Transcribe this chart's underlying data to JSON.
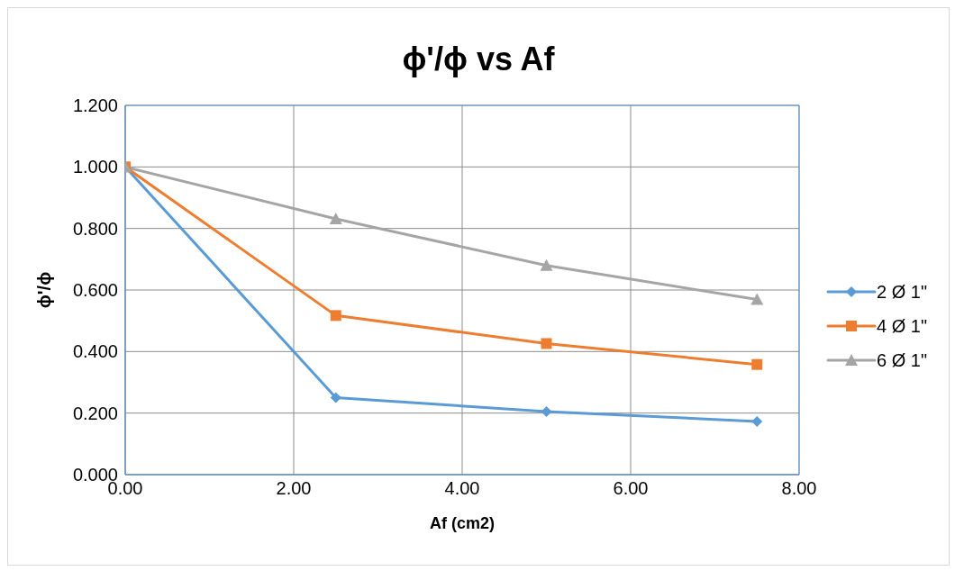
{
  "chart_data": {
    "type": "line",
    "title": "ϕ'/ϕ vs Af",
    "xlabel": "Af (cm2)",
    "ylabel": "ϕ'/ϕ",
    "x": [
      0,
      2.5,
      5,
      7.5
    ],
    "series": [
      {
        "name": "2 Ø 1\"",
        "color": "#5b9bd5",
        "marker": "diamond",
        "values": [
          1.0,
          0.25,
          0.205,
          0.173
        ]
      },
      {
        "name": "4 Ø 1\"",
        "color": "#ed7d31",
        "marker": "square",
        "values": [
          1.0,
          0.517,
          0.426,
          0.358
        ]
      },
      {
        "name": "6 Ø 1\"",
        "color": "#a5a5a5",
        "marker": "triangle",
        "values": [
          1.0,
          0.831,
          0.68,
          0.569
        ]
      }
    ],
    "xlim": [
      0,
      8
    ],
    "xticks": [
      {
        "value": 0,
        "label": "0.00"
      },
      {
        "value": 2,
        "label": "2.00"
      },
      {
        "value": 4,
        "label": "4.00"
      },
      {
        "value": 6,
        "label": "6.00"
      },
      {
        "value": 8,
        "label": "8.00"
      }
    ],
    "ylim": [
      0,
      1.2
    ],
    "yticks": [
      {
        "value": 0,
        "label": "0.000"
      },
      {
        "value": 0.2,
        "label": "0.200"
      },
      {
        "value": 0.4,
        "label": "0.400"
      },
      {
        "value": 0.6,
        "label": "0.600"
      },
      {
        "value": 0.8,
        "label": "0.800"
      },
      {
        "value": 1.0,
        "label": "1.000"
      },
      {
        "value": 1.2,
        "label": "1.200"
      }
    ],
    "grid": true,
    "legend": "right",
    "line_style": "solid"
  }
}
